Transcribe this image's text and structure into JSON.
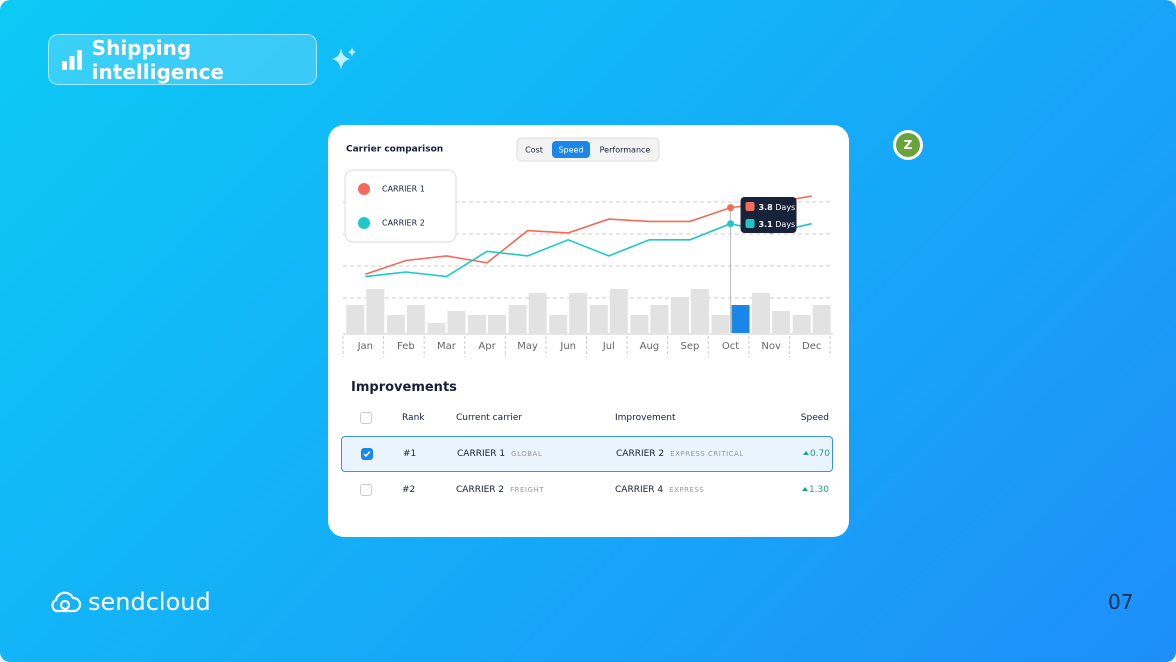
{
  "header": {
    "title": "Shipping intelligence"
  },
  "chart_data": {
    "type": "line",
    "title": "Carrier comparison",
    "tabs": [
      "Cost",
      "Speed",
      "Performance"
    ],
    "active_tab": 1,
    "categories": [
      "Jan",
      "Feb",
      "Mar",
      "Apr",
      "May",
      "Jun",
      "Jul",
      "Aug",
      "Sep",
      "Oct",
      "Nov",
      "Dec"
    ],
    "ylim": [
      0,
      5
    ],
    "series": [
      {
        "name": "CARRIER 1",
        "color": "#f26b5b",
        "values": [
          0.9,
          1.5,
          1.7,
          1.4,
          2.8,
          2.7,
          3.3,
          3.2,
          3.2,
          3.8,
          4.0,
          4.3
        ]
      },
      {
        "name": "CARRIER 2",
        "color": "#1ec8c8",
        "values": [
          0.8,
          1.0,
          0.8,
          1.9,
          1.7,
          2.4,
          1.7,
          2.4,
          2.4,
          3.1,
          2.7,
          3.1
        ]
      }
    ],
    "bar_ylim": [
      0,
      50
    ],
    "bar_series": [
      {
        "color": "#e2e2e2",
        "values": [
          28,
          18,
          10,
          18,
          28,
          18,
          28,
          18,
          36,
          18,
          40,
          18
        ]
      },
      {
        "color": "#e2e2e2",
        "values": [
          44,
          28,
          22,
          18,
          40,
          40,
          44,
          28,
          44,
          28,
          22,
          28
        ]
      }
    ],
    "highlight": {
      "index": 9,
      "color": "#1a86e8"
    },
    "tooltip_unit": "Days"
  },
  "table": {
    "title": "Improvements",
    "columns": [
      "Rank",
      "Current carrier",
      "Improvement",
      "Speed"
    ],
    "rows": [
      {
        "rank": "#1",
        "carrier": "CARRIER 1",
        "carrier_tag": "GLOBAL",
        "improvement": "CARRIER 2",
        "improvement_tag": "EXPRESS CRITICAL",
        "speed": "0.70",
        "selected": true
      },
      {
        "rank": "#2",
        "carrier": "CARRIER 2",
        "carrier_tag": "FREIGHT",
        "improvement": "CARRIER 4",
        "improvement_tag": "EXPRESS",
        "speed": "1.30",
        "selected": false
      }
    ]
  },
  "avatar": "Z",
  "footer": {
    "brand": "sendcloud",
    "page": "07"
  }
}
